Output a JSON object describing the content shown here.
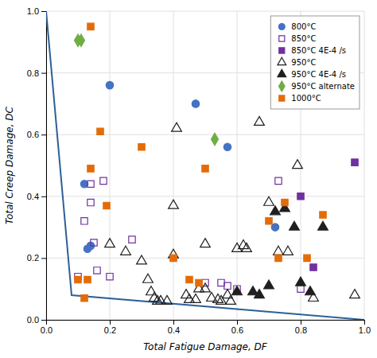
{
  "chart_data": {
    "type": "scatter",
    "xlabel": "Total Fatigue Damage, DF",
    "ylabel": "Total Creep Damage, DC",
    "xlim": [
      0.0,
      1.0
    ],
    "ylim": [
      0.0,
      1.0
    ],
    "xticks": [
      {
        "value": 0.0,
        "label": "0.0"
      },
      0.2,
      0.4,
      0.6,
      0.8,
      {
        "value": 1.0,
        "label": "1.0"
      }
    ],
    "yticks": [
      {
        "value": 0.0,
        "label": "0.0"
      },
      0.2,
      0.4,
      0.6,
      0.8,
      {
        "value": 1.0,
        "label": "1.0"
      }
    ],
    "grid": true,
    "legend": "upper right",
    "series": [
      {
        "type": "line",
        "color": "#2E6096",
        "x": [
          0.0,
          0.08,
          1.0
        ],
        "values": [
          1.0,
          0.08,
          0.0
        ]
      },
      {
        "name": "800°C",
        "type": "scatter",
        "marker": "circle",
        "color": "#4472C4",
        "x": [
          0.12,
          0.13,
          0.14,
          0.2,
          0.47,
          0.57,
          0.72
        ],
        "values": [
          0.44,
          0.23,
          0.24,
          0.76,
          0.7,
          0.56,
          0.3
        ]
      },
      {
        "name": "850°C",
        "type": "scatter",
        "marker": "square-open",
        "color": "#7030A0",
        "x": [
          0.1,
          0.12,
          0.14,
          0.14,
          0.15,
          0.16,
          0.18,
          0.2,
          0.27,
          0.5,
          0.55,
          0.57,
          0.6,
          0.73,
          0.8
        ],
        "values": [
          0.14,
          0.32,
          0.44,
          0.38,
          0.25,
          0.16,
          0.45,
          0.14,
          0.26,
          0.12,
          0.12,
          0.11,
          0.1,
          0.45,
          0.1
        ]
      },
      {
        "name": "850°C 4E-4 /s",
        "type": "scatter",
        "marker": "square",
        "color": "#7030A0",
        "x": [
          0.8,
          0.84,
          0.97
        ],
        "values": [
          0.4,
          0.17,
          0.51
        ]
      },
      {
        "name": "950°C",
        "type": "scatter",
        "marker": "triangle-open",
        "color": "#1F1F1F",
        "x": [
          0.2,
          0.25,
          0.3,
          0.32,
          0.33,
          0.34,
          0.35,
          0.36,
          0.38,
          0.4,
          0.4,
          0.41,
          0.44,
          0.45,
          0.47,
          0.48,
          0.5,
          0.5,
          0.52,
          0.54,
          0.55,
          0.57,
          0.58,
          0.6,
          0.62,
          0.63,
          0.67,
          0.7,
          0.73,
          0.76,
          0.79,
          0.84,
          0.97
        ],
        "values": [
          0.245,
          0.22,
          0.19,
          0.13,
          0.09,
          0.07,
          0.06,
          0.06,
          0.06,
          0.37,
          0.21,
          0.62,
          0.08,
          0.065,
          0.065,
          0.1,
          0.245,
          0.1,
          0.07,
          0.065,
          0.06,
          0.08,
          0.06,
          0.23,
          0.24,
          0.23,
          0.64,
          0.38,
          0.22,
          0.22,
          0.5,
          0.07,
          0.08
        ]
      },
      {
        "name": "950°C 4E-4 /s",
        "type": "scatter",
        "marker": "triangle",
        "color": "#1F1F1F",
        "x": [
          0.6,
          0.65,
          0.67,
          0.7,
          0.72,
          0.75,
          0.78,
          0.8,
          0.83,
          0.87
        ],
        "values": [
          0.09,
          0.09,
          0.08,
          0.11,
          0.35,
          0.36,
          0.3,
          0.12,
          0.09,
          0.3
        ]
      },
      {
        "name": "950°C alternate",
        "type": "scatter",
        "marker": "diamond",
        "color": "#70AD47",
        "x": [
          0.1,
          0.11,
          0.53
        ],
        "values": [
          0.905,
          0.905,
          0.585
        ]
      },
      {
        "name": "1000°C",
        "type": "scatter",
        "marker": "square",
        "color": "#E36C09",
        "x": [
          0.1,
          0.12,
          0.13,
          0.14,
          0.14,
          0.17,
          0.19,
          0.3,
          0.4,
          0.45,
          0.48,
          0.5,
          0.7,
          0.73,
          0.75,
          0.82,
          0.87
        ],
        "values": [
          0.13,
          0.07,
          0.13,
          0.95,
          0.49,
          0.61,
          0.37,
          0.56,
          0.2,
          0.13,
          0.12,
          0.49,
          0.32,
          0.2,
          0.38,
          0.2,
          0.34
        ]
      }
    ]
  }
}
